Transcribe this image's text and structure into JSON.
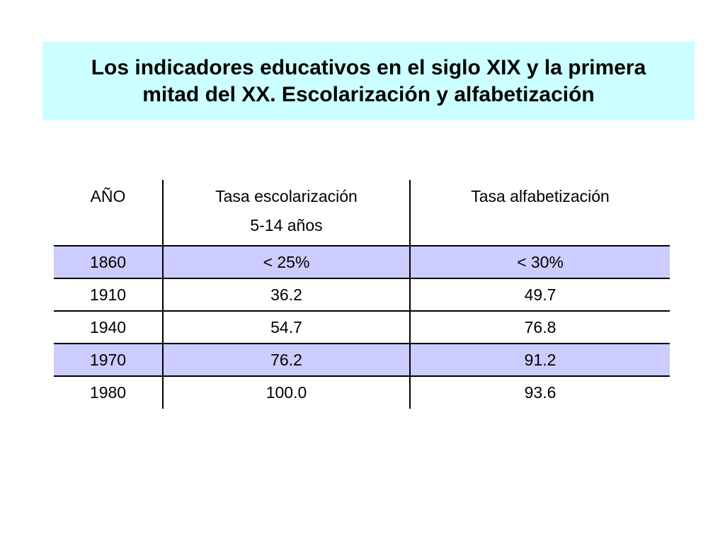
{
  "title": {
    "line1": "Los indicadores educativos en el siglo XIX y la primera",
    "line2": "mitad del XX. Escolarización y alfabetización"
  },
  "table": {
    "headers": {
      "year": "AÑO",
      "schooling": "Tasa escolarización",
      "schooling_sub": "5-14 años",
      "literacy": "Tasa alfabetización"
    },
    "rows": [
      {
        "year": "1860",
        "schooling": "< 25%",
        "literacy": "< 30%",
        "shaded": true
      },
      {
        "year": "1910",
        "schooling": "36.2",
        "literacy": "49.7",
        "shaded": false
      },
      {
        "year": "1940",
        "schooling": "54.7",
        "literacy": "76.8",
        "shaded": false
      },
      {
        "year": "1970",
        "schooling": "76.2",
        "literacy": "91.2",
        "shaded": true
      },
      {
        "year": "1980",
        "schooling": "100.0",
        "literacy": "93.6",
        "shaded": false
      }
    ],
    "colors": {
      "title_background": "#ccffff",
      "shaded_row": "#ccccff",
      "rule": "#000000"
    }
  }
}
